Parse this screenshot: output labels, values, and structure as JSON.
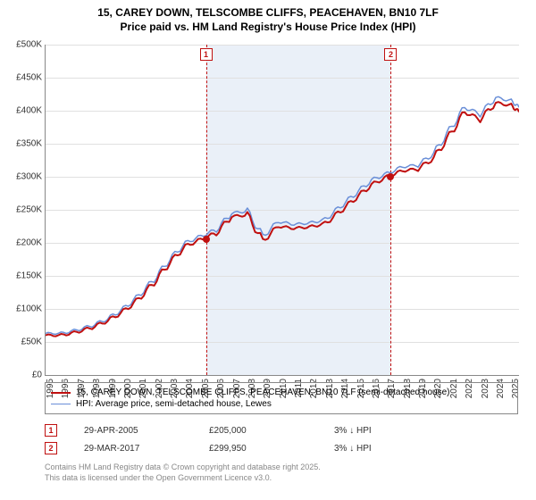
{
  "title_line1": "15, CAREY DOWN, TELSCOMBE CLIFFS, PEACEHAVEN, BN10 7LF",
  "title_line2": "Price paid vs. HM Land Registry's House Price Index (HPI)",
  "chart": {
    "type": "line",
    "xlim": [
      1995,
      2025.5
    ],
    "ylim": [
      0,
      500000
    ],
    "ytick_step": 50000,
    "ytick_labels": [
      "£0",
      "£50K",
      "£100K",
      "£150K",
      "£200K",
      "£250K",
      "£300K",
      "£350K",
      "£400K",
      "£450K",
      "£500K"
    ],
    "xtick_step": 1,
    "xtick_labels": [
      "1995",
      "1996",
      "1997",
      "1998",
      "1999",
      "2000",
      "2001",
      "2002",
      "2003",
      "2004",
      "2005",
      "2006",
      "2007",
      "2008",
      "2009",
      "2010",
      "2011",
      "2012",
      "2013",
      "2014",
      "2015",
      "2016",
      "2017",
      "2018",
      "2019",
      "2020",
      "2021",
      "2022",
      "2023",
      "2024",
      "2025"
    ],
    "background_color": "#ffffff",
    "grid_color": "#e0e0e0",
    "shade_color": "#e6edf7",
    "shade_range": [
      2005.33,
      2017.24
    ],
    "series": [
      {
        "name": "hpi",
        "label": "HPI: Average price, semi-detached house, Lewes",
        "color": "#6a8fd8",
        "width": 1.5,
        "x": [
          1995,
          1996,
          1997,
          1998,
          1999,
          2000,
          2001,
          2002,
          2003,
          2004,
          2005,
          2006,
          2007,
          2008,
          2009,
          2010,
          2011,
          2012,
          2013,
          2014,
          2015,
          2016,
          2017,
          2018,
          2019,
          2020,
          2021,
          2022,
          2023,
          2024,
          2025,
          2025.5
        ],
        "y": [
          63000,
          63000,
          68000,
          75000,
          85000,
          100000,
          120000,
          145000,
          175000,
          200000,
          210000,
          220000,
          245000,
          248000,
          210000,
          232000,
          228000,
          230000,
          235000,
          255000,
          275000,
          295000,
          305000,
          315000,
          318000,
          335000,
          370000,
          405000,
          395000,
          420000,
          415000,
          405000
        ]
      },
      {
        "name": "property",
        "label": "15, CAREY DOWN, TELSCOMBE CLIFFS, PEACEHAVEN, BN10 7LF (semi-detached house)",
        "color": "#c01010",
        "width": 2,
        "x": [
          1995,
          1996,
          1997,
          1998,
          1999,
          2000,
          2001,
          2002,
          2003,
          2004,
          2005,
          2006,
          2007,
          2008,
          2009,
          2010,
          2011,
          2012,
          2013,
          2014,
          2015,
          2016,
          2017,
          2018,
          2019,
          2020,
          2021,
          2022,
          2023,
          2024,
          2025,
          2025.5
        ],
        "y": [
          60000,
          60000,
          65000,
          72000,
          82000,
          96000,
          115000,
          140000,
          170000,
          195000,
          205000,
          215000,
          240000,
          242000,
          203000,
          225000,
          222000,
          224000,
          229000,
          248000,
          268000,
          288000,
          300000,
          309000,
          312000,
          328000,
          362000,
          398000,
          387000,
          412000,
          408000,
          398000
        ]
      }
    ],
    "sale_markers": [
      {
        "n": "1",
        "x": 2005.33,
        "y": 205000,
        "color": "#c01010"
      },
      {
        "n": "2",
        "x": 2017.24,
        "y": 299950,
        "color": "#c01010"
      }
    ]
  },
  "legend": {
    "rows": [
      {
        "color": "#c01010",
        "width": 2,
        "label": "15, CAREY DOWN, TELSCOMBE CLIFFS, PEACEHAVEN, BN10 7LF (semi-detached house)"
      },
      {
        "color": "#6a8fd8",
        "width": 1.5,
        "label": "HPI: Average price, semi-detached house, Lewes"
      }
    ]
  },
  "sales": [
    {
      "n": "1",
      "color": "#c01010",
      "date": "29-APR-2005",
      "price": "£205,000",
      "delta": "3% ↓ HPI"
    },
    {
      "n": "2",
      "color": "#c01010",
      "date": "29-MAR-2017",
      "price": "£299,950",
      "delta": "3% ↓ HPI"
    }
  ],
  "footer_line1": "Contains HM Land Registry data © Crown copyright and database right 2025.",
  "footer_line2": "This data is licensed under the Open Government Licence v3.0."
}
